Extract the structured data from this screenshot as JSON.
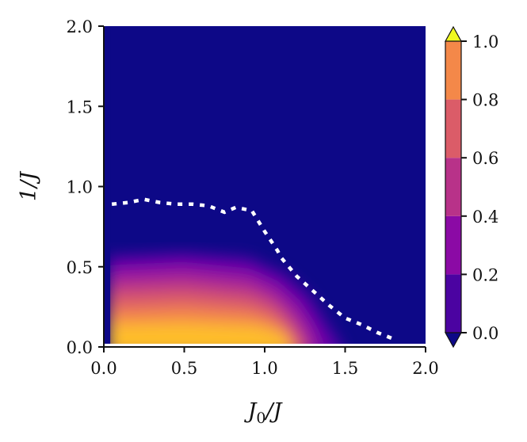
{
  "chart_data": {
    "type": "heatmap",
    "title": "",
    "xlabel": "J0/J",
    "ylabel": "1/J",
    "xlabel_parts": {
      "base": "J",
      "sub": "0",
      "rest": "/J"
    },
    "xlim": [
      0.0,
      2.0
    ],
    "ylim": [
      0.0,
      2.0
    ],
    "xticks": [
      "0.0",
      "0.5",
      "1.0",
      "1.5",
      "2.0"
    ],
    "yticks": [
      "0.0",
      "0.5",
      "1.0",
      "1.5",
      "2.0"
    ],
    "colormap": "plasma",
    "colorbar": {
      "levels": [
        0.0,
        0.2,
        0.4,
        0.6,
        0.8,
        1.0
      ],
      "ticks": [
        "0.0",
        "0.2",
        "0.4",
        "0.6",
        "0.8",
        "1.0"
      ],
      "colors": [
        "#4b03a1",
        "#8b0aa5",
        "#b83289",
        "#db5c68",
        "#f48849",
        "#febd2a"
      ],
      "under_color": "#0d0887",
      "over_color": "#f0f921",
      "extend": "both"
    },
    "background_color": "#0d0887",
    "ordered_region": {
      "description_values": "order parameter ~1 near small 1/J and small J0/J, decaying to 0 above 1/J≈0.55 and beyond J0/J≈1.35",
      "boundary_1_over_J_by_J0": [
        [
          0.05,
          0.55
        ],
        [
          0.5,
          0.57
        ],
        [
          0.9,
          0.55
        ],
        [
          1.1,
          0.45
        ],
        [
          1.25,
          0.3
        ],
        [
          1.35,
          0.12
        ],
        [
          1.45,
          0.0
        ]
      ]
    },
    "dotted_line": {
      "color": "#ffffff",
      "x": [
        0.05,
        0.15,
        0.25,
        0.35,
        0.45,
        0.55,
        0.65,
        0.75,
        0.82,
        0.92,
        1.0,
        1.08,
        1.1,
        1.2,
        1.3,
        1.4,
        1.5,
        1.6,
        1.7,
        1.8
      ],
      "y": [
        0.89,
        0.9,
        0.92,
        0.9,
        0.89,
        0.89,
        0.88,
        0.84,
        0.87,
        0.85,
        0.72,
        0.6,
        0.56,
        0.44,
        0.35,
        0.26,
        0.18,
        0.14,
        0.09,
        0.05
      ]
    }
  }
}
